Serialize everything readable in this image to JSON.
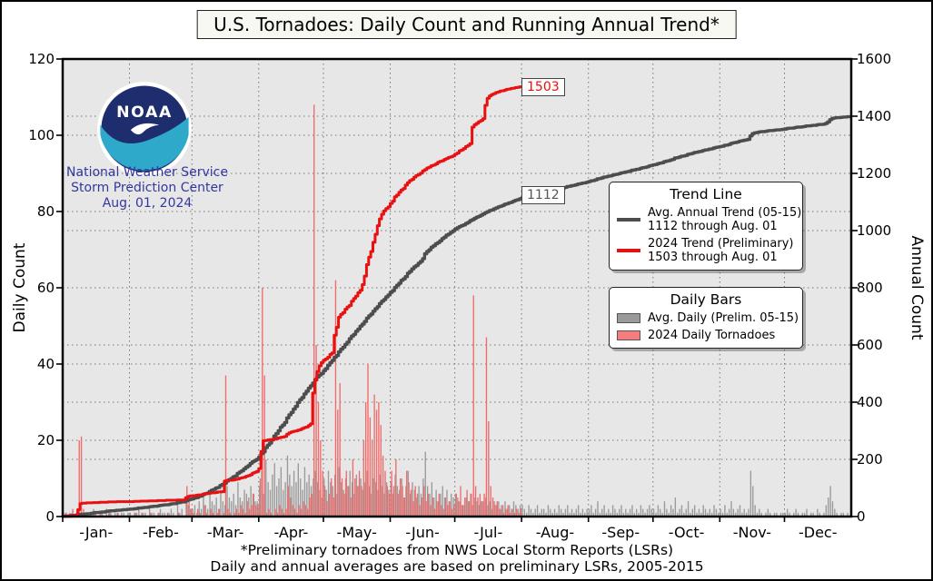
{
  "title": "U.S. Tornadoes: Daily Count and Running Annual Trend*",
  "logo": {
    "acronym": "NOAA",
    "line1": "National Weather Service",
    "line2": "Storm Prediction Center",
    "date": "Aug. 01, 2024"
  },
  "annotations": {
    "trend_2024_total": "1503",
    "trend_avg_total": "1112"
  },
  "legend_trend": {
    "title": "Trend Line",
    "entries": [
      {
        "label_line1": "Avg. Annual Trend (05-15)",
        "label_line2": "1112 through Aug. 01",
        "color": "#4d4d4d"
      },
      {
        "label_line1": "2024 Trend (Preliminary)",
        "label_line2": "1503 through Aug. 01",
        "color": "#e81010"
      }
    ]
  },
  "legend_bars": {
    "title": "Daily Bars",
    "entries": [
      {
        "label": "Avg. Daily (Prelim. 05-15)",
        "color": "#9a9a9a"
      },
      {
        "label": "2024 Daily Tornadoes",
        "color": "#f57d7d"
      }
    ]
  },
  "footer": {
    "line1": "*Preliminary tornadoes from NWS Local Storm Reports (LSRs)",
    "line2": "Daily and annual averages are based on preliminary LSRs, 2005-2015"
  },
  "colors": {
    "plot_bg": "#e7e7e7",
    "grid": "#777777",
    "spine": "#000000",
    "bar_avg": "#9a9a9a",
    "bar_2024": "#f26a6a",
    "line_avg": "#4d4d4d",
    "line_2024": "#e81010",
    "logo_navy": "#1d2d6e",
    "logo_teal": "#2fa9c9"
  },
  "chart_data": {
    "type": "bar",
    "title": "U.S. Tornadoes: Daily Count and Running Annual Trend*",
    "xlabel": "",
    "x_axis": {
      "month_labels": [
        "-Jan-",
        "-Feb-",
        "-Mar-",
        "-Apr-",
        "-May-",
        "-Jun-",
        "-Jul-",
        "-Aug-",
        "-Sep-",
        "-Oct-",
        "-Nov-",
        "-Dec-"
      ],
      "month_start_days": [
        0,
        31,
        60,
        91,
        121,
        152,
        182,
        213,
        244,
        274,
        305,
        335
      ],
      "days_in_year": 366
    },
    "y_left": {
      "label": "Daily Count",
      "ticks": [
        0,
        20,
        40,
        60,
        80,
        100,
        120
      ],
      "max": 120
    },
    "y_right": {
      "label": "Annual Count",
      "ticks": [
        0,
        200,
        400,
        600,
        800,
        1000,
        1200,
        1400,
        1600
      ],
      "max": 1600
    },
    "grid": true,
    "legend_position": "center right",
    "series": [
      {
        "name": "Avg. Daily (Prelim. 05-15)",
        "type": "bar",
        "axis": "left",
        "values": [
          1,
          1,
          0,
          1,
          1,
          0,
          1,
          2,
          1,
          0,
          1,
          1,
          0,
          1,
          2,
          1,
          0,
          1,
          1,
          0,
          2,
          1,
          1,
          0,
          1,
          1,
          0,
          1,
          1,
          0,
          1,
          1,
          0,
          1,
          1,
          2,
          0,
          1,
          1,
          0,
          2,
          1,
          1,
          0,
          1,
          2,
          1,
          1,
          0,
          1,
          2,
          1,
          0,
          3,
          1,
          2,
          0,
          4,
          3,
          2,
          2,
          3,
          1,
          4,
          2,
          5,
          3,
          2,
          6,
          4,
          3,
          5,
          2,
          7,
          4,
          3,
          8,
          5,
          4,
          6,
          3,
          9,
          5,
          4,
          7,
          6,
          5,
          8,
          6,
          4,
          4,
          8,
          12,
          6,
          15,
          9,
          7,
          11,
          14,
          8,
          10,
          13,
          7,
          9,
          16,
          11,
          8,
          12,
          9,
          14,
          10,
          7,
          13,
          9,
          11,
          8,
          10,
          12,
          9,
          7,
          5,
          10,
          7,
          12,
          9,
          8,
          11,
          6,
          13,
          9,
          7,
          10,
          8,
          12,
          9,
          6,
          11,
          8,
          10,
          7,
          9,
          12,
          8,
          6,
          10,
          9,
          7,
          11,
          8,
          6,
          9,
          7,
          9,
          6,
          11,
          8,
          7,
          10,
          5,
          8,
          12,
          6,
          9,
          7,
          5,
          8,
          6,
          10,
          17,
          8,
          6,
          9,
          5,
          7,
          4,
          6,
          8,
          5,
          7,
          4,
          6,
          5,
          6,
          5,
          4,
          3,
          3,
          5,
          4,
          6,
          3,
          5,
          4,
          3,
          4,
          4,
          5,
          3,
          4,
          2,
          4,
          3,
          4,
          2,
          3,
          4,
          2,
          3,
          2,
          4,
          3,
          2,
          3,
          3,
          2,
          1,
          3,
          2,
          1,
          2,
          3,
          1,
          2,
          2,
          1,
          3,
          2,
          1,
          2,
          1,
          3,
          2,
          1,
          2,
          3,
          1,
          2,
          1,
          2,
          3,
          1,
          2,
          1,
          2,
          2,
          3,
          1,
          2,
          4,
          1,
          2,
          3,
          1,
          2,
          1,
          3,
          2,
          1,
          2,
          3,
          1,
          2,
          1,
          2,
          3,
          1,
          2,
          1,
          3,
          2,
          1,
          2,
          3,
          2,
          2,
          1,
          3,
          2,
          1,
          4,
          2,
          1,
          3,
          2,
          5,
          1,
          2,
          3,
          1,
          2,
          4,
          1,
          2,
          3,
          1,
          2,
          1,
          3,
          2,
          1,
          2,
          1,
          3,
          2,
          1,
          2,
          1,
          3,
          1,
          2,
          4,
          2,
          1,
          2,
          3,
          1,
          2,
          1,
          2,
          12,
          8,
          3,
          1,
          2,
          1,
          0,
          1,
          2,
          1,
          0,
          1,
          1,
          0,
          1,
          1,
          1,
          2,
          1,
          0,
          1,
          2,
          1,
          0,
          1,
          1,
          2,
          0,
          1,
          1,
          0,
          2,
          1,
          0,
          1,
          3,
          5,
          8,
          4,
          2,
          1,
          0,
          1,
          1,
          0,
          1,
          0
        ]
      },
      {
        "name": "2024 Daily Tornadoes",
        "type": "bar",
        "axis": "left",
        "values": [
          0,
          1,
          0,
          0,
          2,
          0,
          1,
          20,
          21,
          2,
          0,
          1,
          0,
          0,
          1,
          0,
          0,
          1,
          0,
          0,
          0,
          1,
          0,
          0,
          0,
          1,
          0,
          0,
          0,
          0,
          0,
          0,
          0,
          1,
          0,
          0,
          1,
          0,
          0,
          0,
          1,
          0,
          0,
          0,
          1,
          0,
          0,
          0,
          1,
          0,
          0,
          0,
          0,
          1,
          0,
          0,
          0,
          8,
          4,
          2,
          1,
          0,
          2,
          1,
          0,
          3,
          1,
          0,
          2,
          1,
          0,
          1,
          2,
          0,
          1,
          37,
          2,
          1,
          0,
          1,
          2,
          1,
          3,
          2,
          1,
          4,
          2,
          3,
          6,
          3,
          3,
          10,
          60,
          37,
          1,
          2,
          1,
          0,
          2,
          1,
          3,
          2,
          1,
          2,
          8,
          5,
          3,
          2,
          1,
          3,
          2,
          4,
          3,
          2,
          5,
          6,
          108,
          45,
          30,
          20,
          12,
          8,
          4,
          6,
          10,
          5,
          62,
          28,
          35,
          10,
          6,
          12,
          8,
          5,
          15,
          10,
          8,
          12,
          8,
          20,
          30,
          40,
          26,
          20,
          32,
          28,
          30,
          24,
          16,
          12,
          8,
          6,
          12,
          8,
          15,
          6,
          10,
          8,
          5,
          12,
          9,
          7,
          4,
          8,
          6,
          3,
          5,
          8,
          4,
          6,
          3,
          5,
          2,
          4,
          6,
          3,
          2,
          5,
          3,
          4,
          2,
          3,
          6,
          4,
          8,
          3,
          5,
          7,
          4,
          6,
          58,
          8,
          5,
          6,
          4,
          6,
          47,
          25,
          8,
          5,
          3,
          4,
          2,
          3,
          1,
          2,
          3,
          1,
          2,
          1,
          2,
          1,
          2
        ]
      },
      {
        "name": "Avg. Annual Trend (05-15)",
        "type": "cumulative-step-line",
        "axis": "right",
        "source_bar_series": 0,
        "value_at_aug01": 1112,
        "value_at_year_end": 1399
      },
      {
        "name": "2024 Trend (Preliminary)",
        "type": "cumulative-step-line",
        "axis": "right",
        "source_bar_series": 1,
        "value_at_aug01": 1503,
        "ends_day": 213
      }
    ]
  }
}
